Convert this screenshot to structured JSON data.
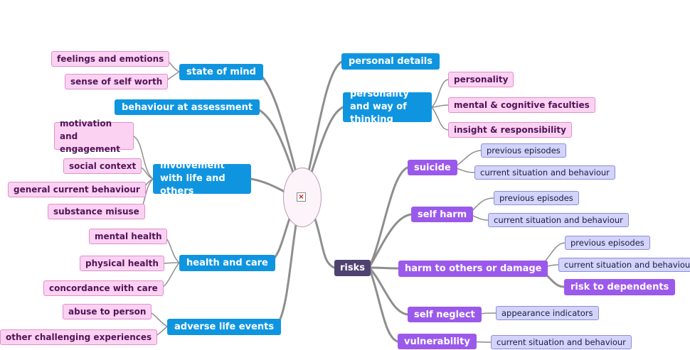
{
  "root": {
    "icon": "broken-image-icon"
  },
  "left": {
    "state_of_mind": {
      "label": "state of mind",
      "children": [
        "feelings and emotions",
        "sense of self worth"
      ]
    },
    "behaviour_at_assessment": {
      "label": "behaviour at assessment"
    },
    "involvement": {
      "label": "involvement with life and others",
      "children": [
        "motivation and engagement",
        "social context",
        "general current behaviour",
        "substance misuse"
      ]
    },
    "health_and_care": {
      "label": "health and care",
      "children": [
        "mental health",
        "physical health",
        "concordance with care"
      ]
    },
    "adverse_life_events": {
      "label": "adverse life events",
      "children": [
        "abuse to person",
        "other challenging experiences"
      ]
    }
  },
  "right": {
    "personal_details": {
      "label": "personal details"
    },
    "personality_thinking": {
      "label": "personality and way of thinking",
      "children": [
        "personality",
        "mental & cognitive faculties",
        "insight & responsibility"
      ]
    },
    "risks": {
      "label": "risks",
      "suicide": {
        "label": "suicide",
        "children": [
          "previous episodes",
          "current situation and behaviour"
        ]
      },
      "self_harm": {
        "label": "self harm",
        "children": [
          "previous episodes",
          "current situation and behaviour"
        ]
      },
      "harm_to_others": {
        "label": "harm to others or damage",
        "children": [
          "previous episodes",
          "current situation and behaviour"
        ],
        "risk_to_dependents": "risk to dependents"
      },
      "self_neglect": {
        "label": "self neglect",
        "children": [
          "appearance indicators"
        ]
      },
      "vulnerability": {
        "label": "vulnerability",
        "children": [
          "current situation and behaviour"
        ]
      }
    }
  }
}
